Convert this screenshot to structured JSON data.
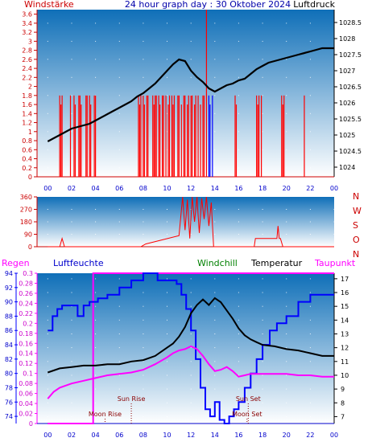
{
  "header": {
    "left": "Windstärke",
    "center": "24 hour graph day : 30 Oktober 2024",
    "right": "Luftdruck"
  },
  "colors": {
    "wind": "#ff0000",
    "pressure": "#000000",
    "direction": "#ff0000",
    "humidity": "#0000ff",
    "windchill": "#008000",
    "temperature": "#000000",
    "dewpoint": "#ff00ff",
    "rain": "#ff00ff",
    "moon": "#8b0000",
    "sun": "#8b0000",
    "sky_top": "#0f6fb8",
    "sky_bottom": "#ffffff",
    "frame": "#8b0000"
  },
  "x_ticks": [
    "00",
    "02",
    "04",
    "06",
    "08",
    "10",
    "12",
    "14",
    "16",
    "18",
    "20",
    "22",
    "00"
  ],
  "chart_data": [
    {
      "type": "line",
      "title": "24 hour graph day : 30 Oktober 2024",
      "panel": "wind-pressure",
      "x_unit": "hour",
      "series": [
        {
          "name": "Windstärke",
          "axis": "left",
          "style": "bars",
          "x": [
            1.0,
            1.1,
            1.2,
            1.9,
            2.2,
            2.3,
            2.6,
            2.7,
            2.8,
            3.2,
            3.3,
            3.5,
            3.6,
            3.9,
            4.0,
            7.6,
            7.7,
            7.8,
            8.0,
            8.1,
            8.3,
            8.4,
            8.8,
            8.9,
            9.0,
            9.1,
            9.3,
            9.4,
            9.6,
            9.7,
            9.9,
            10.1,
            10.2,
            10.4,
            10.5,
            10.6,
            10.9,
            11.0,
            11.2,
            11.4,
            11.5,
            11.7,
            11.8,
            12.0,
            12.1,
            12.3,
            12.4,
            12.6,
            12.8,
            13.0,
            13.1,
            13.3,
            13.5,
            13.6,
            13.8,
            15.7,
            15.8,
            17.5,
            17.6,
            17.7,
            17.9,
            19.6,
            19.7,
            19.8,
            21.5
          ],
          "values": [
            1.8,
            1.6,
            1.8,
            1.8,
            1.8,
            1.6,
            1.8,
            1.8,
            1.6,
            1.8,
            1.8,
            1.8,
            1.6,
            1.8,
            1.8,
            1.8,
            1.6,
            1.8,
            1.8,
            1.6,
            1.8,
            1.8,
            1.8,
            1.6,
            1.8,
            1.8,
            1.8,
            1.6,
            1.8,
            1.8,
            1.8,
            1.6,
            1.8,
            1.8,
            1.6,
            1.8,
            1.8,
            1.8,
            1.6,
            1.8,
            1.8,
            1.6,
            1.8,
            1.8,
            1.8,
            1.6,
            1.8,
            1.8,
            1.6,
            1.8,
            1.8,
            3.7,
            1.8,
            1.6,
            1.8,
            1.8,
            1.6,
            1.8,
            1.6,
            1.8,
            1.8,
            1.8,
            1.6,
            1.8,
            1.8
          ]
        },
        {
          "name": "Luftdruck",
          "axis": "right",
          "x": [
            0,
            0.5,
            1,
            1.5,
            2,
            2.5,
            3,
            3.5,
            4,
            4.5,
            5,
            5.5,
            6,
            6.5,
            7,
            7.5,
            8,
            8.5,
            9,
            9.5,
            10,
            10.5,
            11,
            11.5,
            12,
            12.5,
            13,
            13.5,
            14,
            14.5,
            15,
            15.5,
            16,
            16.5,
            17,
            17.5,
            18,
            18.5,
            19,
            19.5,
            20,
            20.5,
            21,
            21.5,
            22,
            22.5,
            23,
            23.5,
            24
          ],
          "values": [
            1024.8,
            1024.9,
            1025.0,
            1025.1,
            1025.2,
            1025.25,
            1025.3,
            1025.35,
            1025.45,
            1025.55,
            1025.65,
            1025.75,
            1025.85,
            1025.95,
            1026.05,
            1026.2,
            1026.3,
            1026.45,
            1026.6,
            1026.8,
            1027.0,
            1027.2,
            1027.35,
            1027.3,
            1027.0,
            1026.8,
            1026.65,
            1026.45,
            1026.35,
            1026.45,
            1026.55,
            1026.6,
            1026.7,
            1026.75,
            1026.9,
            1027.05,
            1027.15,
            1027.25,
            1027.3,
            1027.35,
            1027.4,
            1027.45,
            1027.5,
            1027.55,
            1027.6,
            1027.65,
            1027.7,
            1027.7,
            1027.7
          ]
        }
      ],
      "y_left": {
        "label": "Windstärke",
        "ylim": [
          0,
          3.7
        ],
        "ticks": [
          0,
          0.2,
          0.4,
          0.6,
          0.8,
          1,
          1.2,
          1.4,
          1.6,
          1.8,
          2,
          2.2,
          2.4,
          2.6,
          2.8,
          3,
          3.2,
          3.4,
          3.6
        ]
      },
      "y_right": {
        "label": "Luftdruck",
        "ylim": [
          1023.7,
          1028.9
        ],
        "ticks": [
          1024,
          1024.5,
          1025,
          1025.5,
          1026,
          1026.5,
          1027,
          1027.5,
          1028,
          1028.5
        ]
      },
      "xlim": [
        -0.9,
        24
      ]
    },
    {
      "type": "line",
      "panel": "wind-direction",
      "x_unit": "hour",
      "series": [
        {
          "name": "Windrichtung",
          "x": [
            0,
            1.0,
            1.2,
            1.4,
            7.8,
            8.2,
            11.0,
            11.3,
            11.5,
            11.7,
            11.9,
            12.1,
            12.3,
            12.5,
            12.7,
            12.9,
            13.1,
            13.3,
            13.5,
            13.7,
            13.9,
            15.2,
            17.3,
            17.4,
            18.0,
            19.2,
            19.3,
            19.4,
            19.5,
            19.7,
            21.3,
            24
          ],
          "values": [
            0,
            0,
            60,
            0,
            0,
            20,
            80,
            360,
            120,
            340,
            60,
            360,
            180,
            360,
            100,
            350,
            200,
            360,
            150,
            320,
            0,
            0,
            0,
            60,
            60,
            60,
            150,
            60,
            60,
            0,
            0,
            0
          ]
        }
      ],
      "ylim": [
        0,
        360
      ],
      "y_ticks": [
        "0",
        "90",
        "180",
        "270",
        "360"
      ],
      "compass": [
        "N",
        "W",
        "S",
        "O",
        "N"
      ]
    },
    {
      "type": "line",
      "panel": "climate",
      "x_unit": "hour",
      "series": [
        {
          "name": "Luftfeuchte",
          "axis": "humidity",
          "x": [
            0,
            0.4,
            0.8,
            1.2,
            2.0,
            2.5,
            3.0,
            3.5,
            4.2,
            5.0,
            6.0,
            7.0,
            8.0,
            9.2,
            10.2,
            10.8,
            11.2,
            11.6,
            12.0,
            12.4,
            12.8,
            13.2,
            13.6,
            14.0,
            14.4,
            14.8,
            15.2,
            15.6,
            16.0,
            16.5,
            17.0,
            17.5,
            18.0,
            18.6,
            19.2,
            20.0,
            21.0,
            22.0,
            24
          ],
          "values": [
            86,
            88,
            89,
            89.5,
            89.5,
            88,
            89.5,
            90,
            90.5,
            91,
            92,
            93,
            94,
            93,
            93,
            92.5,
            91,
            89,
            86,
            82,
            78,
            75,
            74,
            76,
            73.5,
            73,
            74,
            75,
            76,
            78,
            80,
            82,
            84,
            86,
            87,
            88,
            90,
            91,
            91
          ]
        },
        {
          "name": "Temperatur",
          "axis": "temperature",
          "x": [
            0,
            1,
            2,
            3,
            4,
            5,
            6,
            7,
            8,
            9,
            10,
            10.5,
            11,
            11.5,
            12,
            12.5,
            13,
            13.5,
            14,
            14.5,
            15,
            15.5,
            16,
            16.5,
            17,
            17.5,
            18,
            19,
            20,
            21,
            22,
            23,
            24
          ],
          "values": [
            10.2,
            10.5,
            10.6,
            10.7,
            10.7,
            10.8,
            10.8,
            11,
            11.1,
            11.4,
            12,
            12.3,
            12.8,
            13.5,
            14.5,
            15.1,
            15.5,
            15.1,
            15.6,
            15.3,
            14.7,
            14.1,
            13.4,
            12.9,
            12.6,
            12.4,
            12.2,
            12.1,
            11.9,
            11.8,
            11.6,
            11.4,
            11.4
          ]
        },
        {
          "name": "Taupunkt",
          "axis": "temperature",
          "x": [
            0,
            0.5,
            1,
            2,
            3,
            4,
            5,
            6,
            7,
            8,
            9,
            10,
            10.5,
            11,
            11.5,
            12,
            12.5,
            13,
            13.5,
            14,
            14.5,
            15,
            15.5,
            16,
            16.5,
            17,
            17.5,
            18,
            19,
            20,
            21,
            22,
            23,
            24
          ],
          "values": [
            8.3,
            8.8,
            9.1,
            9.4,
            9.6,
            9.8,
            10,
            10.1,
            10.2,
            10.4,
            10.8,
            11.3,
            11.6,
            11.8,
            11.9,
            12.1,
            11.9,
            11.4,
            10.8,
            10.3,
            10.4,
            10.6,
            10.3,
            9.9,
            10,
            10.1,
            10.1,
            10.1,
            10.1,
            10.1,
            10,
            10,
            9.9,
            9.9
          ]
        },
        {
          "name": "Regen",
          "axis": "rain",
          "style": "step",
          "x": [
            0,
            3.7,
            3.8,
            24
          ],
          "values": [
            0,
            0,
            0.3,
            0.3
          ]
        }
      ],
      "headers": {
        "rain": "Regen",
        "humidity": "Luftfeuchte",
        "windchill": "Windchill",
        "temperature": "Temperatur",
        "dewpoint": "Taupunkt"
      },
      "y_rain": {
        "ylim": [
          0,
          0.3
        ],
        "ticks": [
          0,
          0.02,
          0.04,
          0.06,
          0.08,
          0.1,
          0.12,
          0.14,
          0.16,
          0.18,
          0.2,
          0.22,
          0.24,
          0.26,
          0.28,
          0.3
        ]
      },
      "y_humidity": {
        "ylim": [
          73,
          94
        ],
        "ticks": [
          74,
          76,
          78,
          80,
          82,
          84,
          86,
          88,
          90,
          92,
          94
        ]
      },
      "y_temperature": {
        "ylim": [
          6.5,
          17.4
        ],
        "ticks": [
          7,
          8,
          9,
          10,
          11,
          12,
          13,
          14,
          15,
          16,
          17
        ]
      },
      "annotations": [
        {
          "label": "Moon Rise",
          "hour": 4.8
        },
        {
          "label": "Sun Rise",
          "hour": 7.0
        },
        {
          "label": "Sun Set",
          "hour": 16.8
        },
        {
          "label": "Moon Set",
          "hour": 16.7
        }
      ]
    }
  ]
}
